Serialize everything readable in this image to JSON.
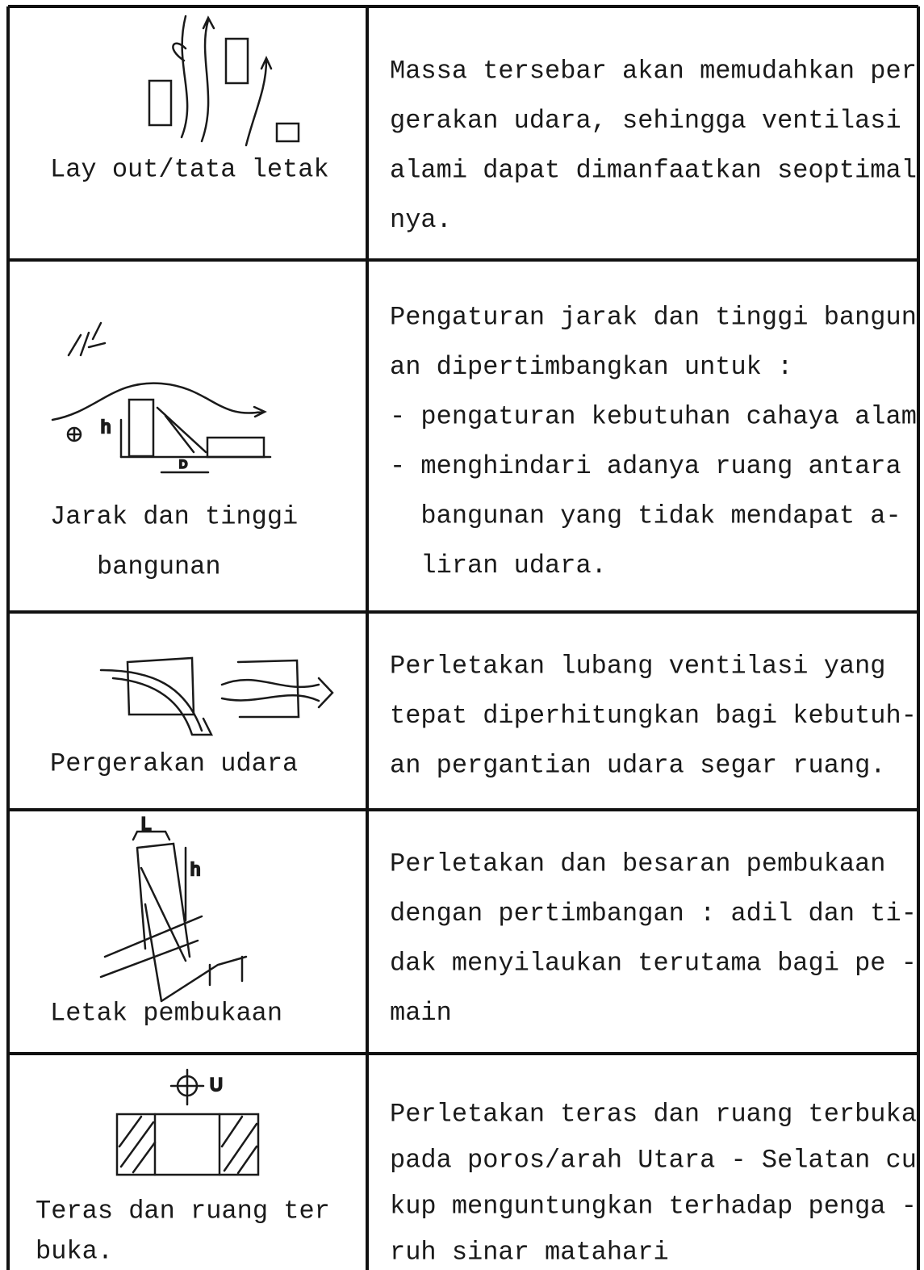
{
  "rows": [
    {
      "caption": [
        "Lay out/tata letak"
      ],
      "description": [
        "Massa tersebar akan memudahkan per",
        "gerakan udara, sehingga ventilasi",
        "alami dapat dimanfaatkan seoptimal",
        "nya."
      ]
    },
    {
      "caption": [
        "Jarak dan tinggi",
        "bangunan"
      ],
      "description": [
        "Pengaturan jarak dan tinggi bangun",
        "an dipertimbangkan untuk :",
        "- pengaturan kebutuhan cahaya alam",
        "- menghindari adanya ruang antara",
        "  bangunan yang tidak mendapat a-",
        "  liran udara."
      ],
      "sketch_labels": [
        "h",
        "D"
      ]
    },
    {
      "caption": [
        "Pergerakan udara"
      ],
      "description": [
        "Perletakan lubang ventilasi yang",
        "tepat diperhitungkan bagi kebutuh-",
        "an pergantian udara segar ruang."
      ]
    },
    {
      "caption": [
        "Letak pembukaan"
      ],
      "description": [
        "Perletakan dan besaran pembukaan",
        "dengan pertimbangan : adil dan ti-",
        "dak menyilaukan terutama bagi pe -",
        "main"
      ],
      "sketch_labels": [
        "L",
        "h"
      ]
    },
    {
      "caption": [
        "Teras dan ruang ter",
        "buka."
      ],
      "description": [
        "Perletakan teras dan ruang terbuka",
        "pada poros/arah Utara - Selatan cu",
        "kup menguntungkan terhadap penga -",
        "ruh sinar matahari"
      ],
      "sketch_labels": [
        "U"
      ]
    }
  ]
}
